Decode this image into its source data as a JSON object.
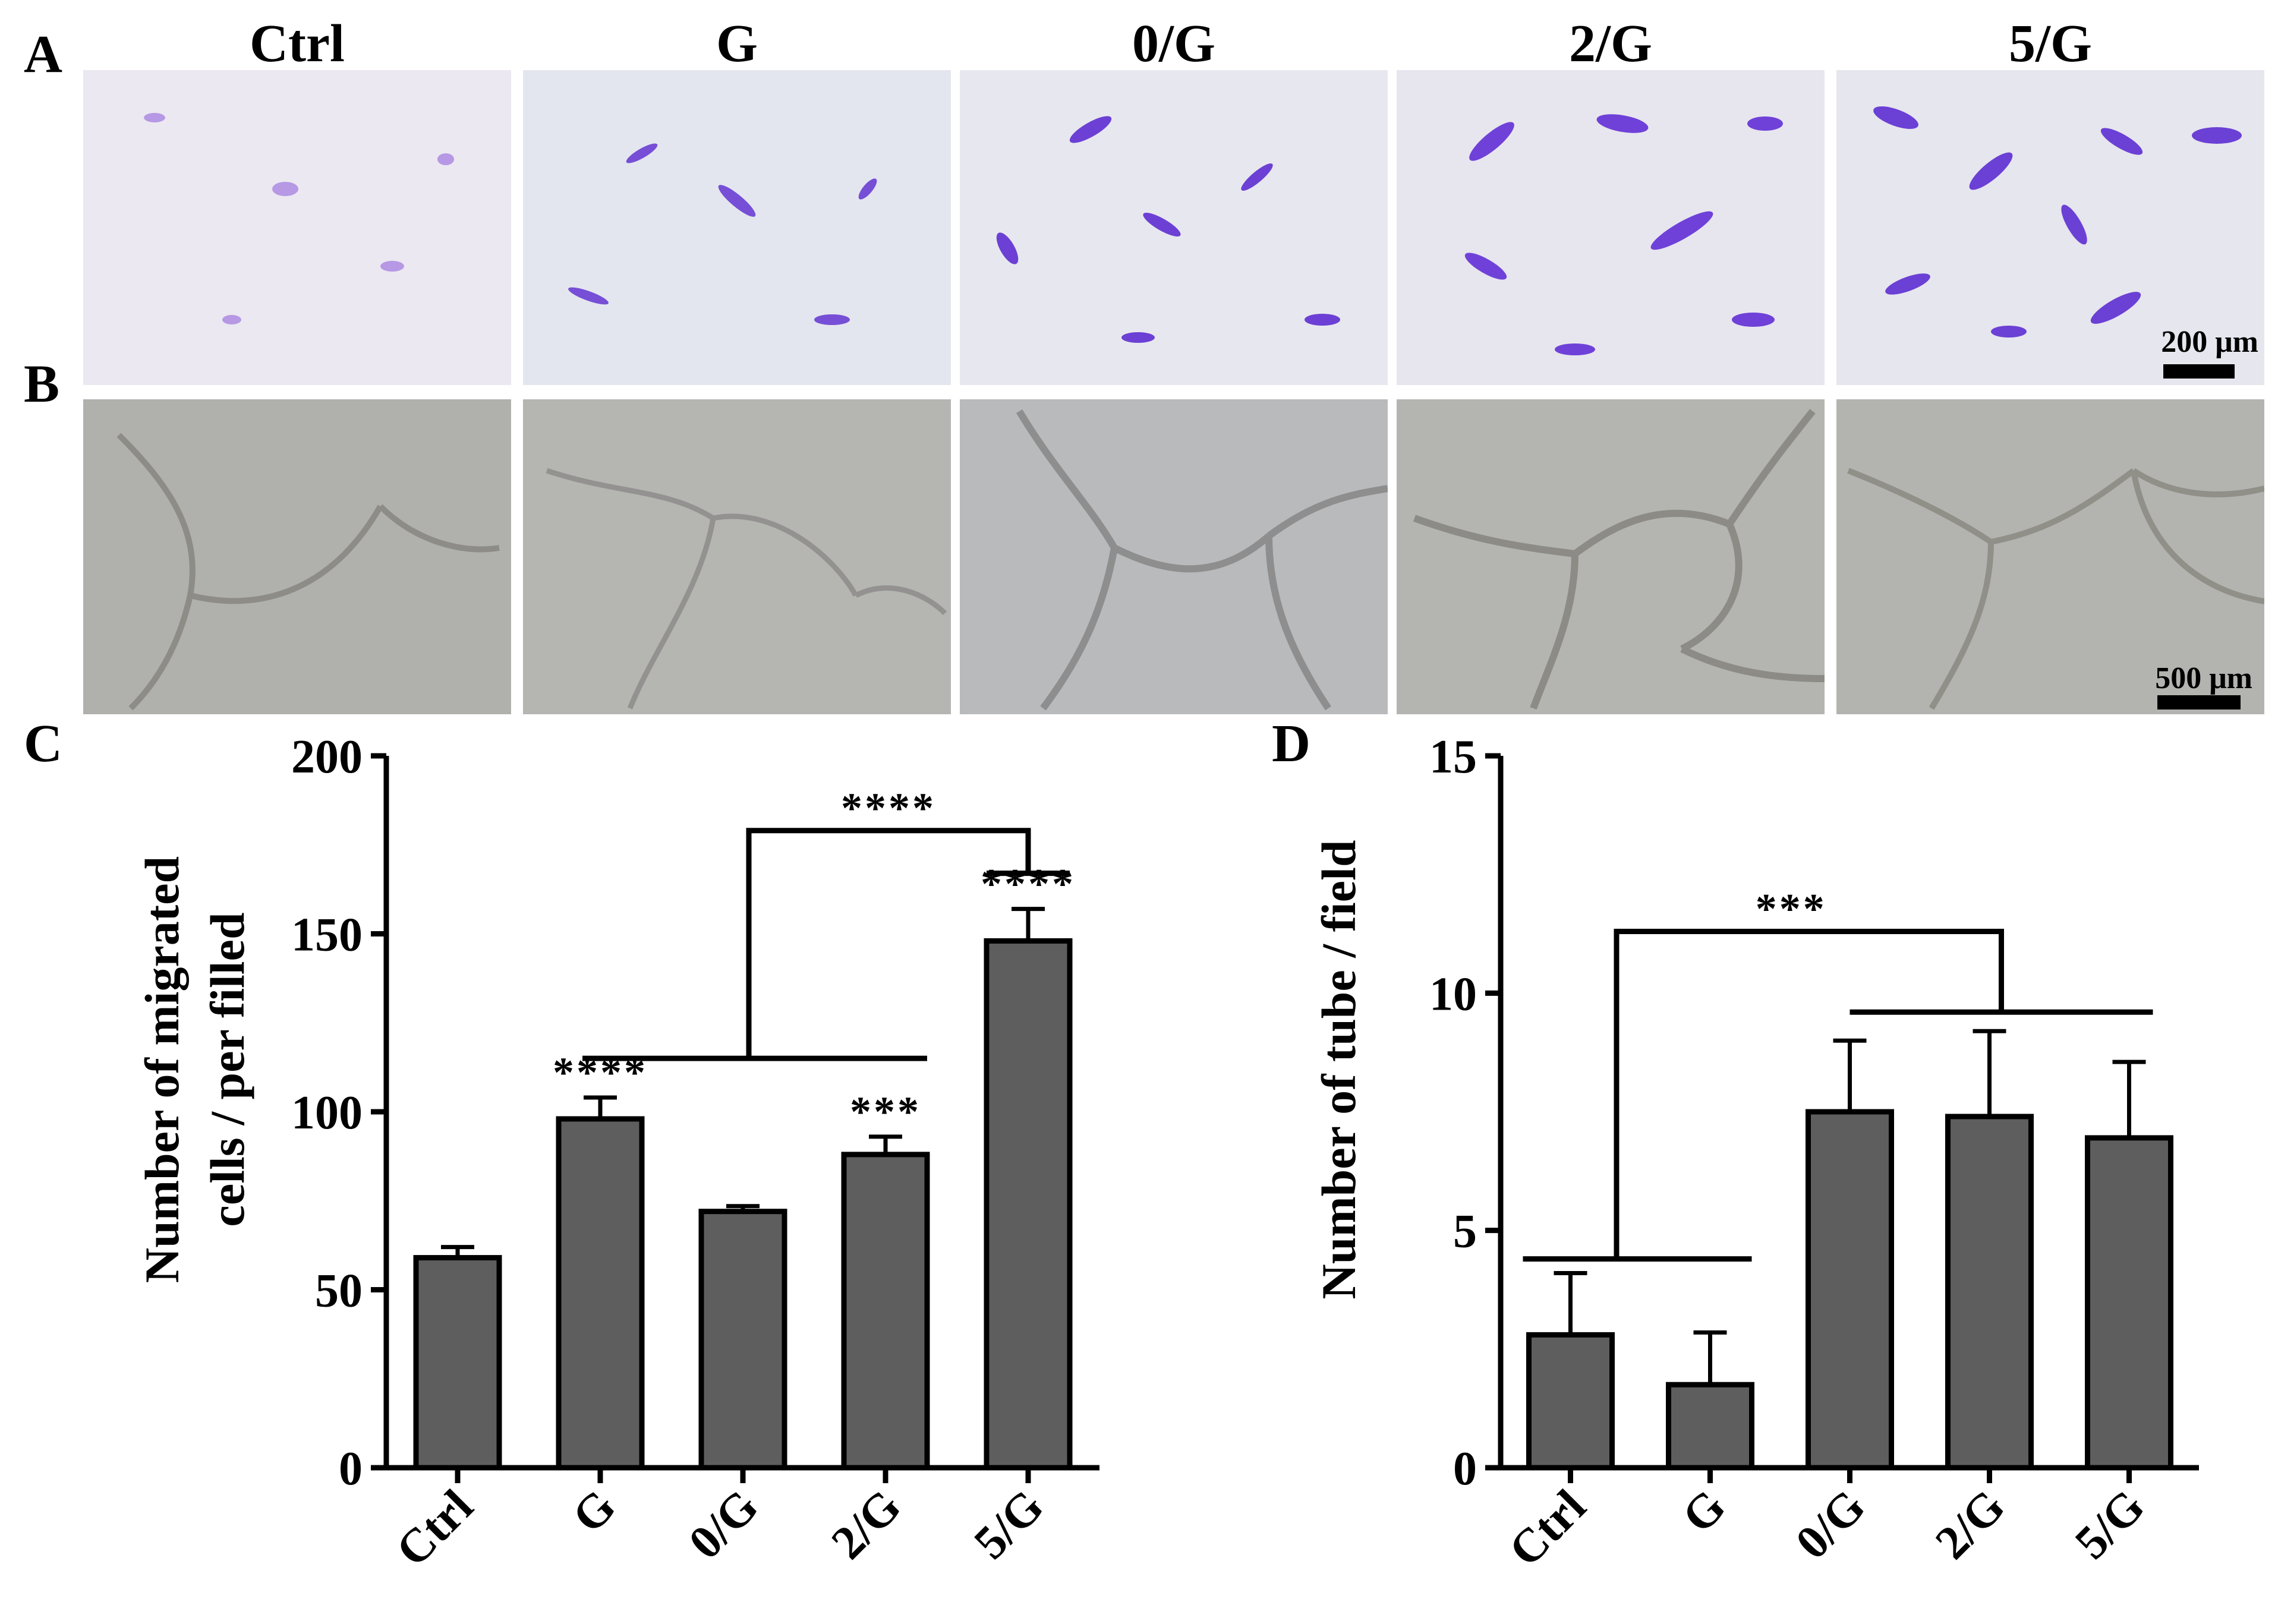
{
  "panels": {
    "a": "A",
    "b": "B",
    "c": "C",
    "d": "D"
  },
  "columns": [
    "Ctrl",
    "G",
    "0/G",
    "2/G",
    "5/G"
  ],
  "scalebars": {
    "a": "200 μm",
    "b": "500 μm"
  },
  "colors": {
    "bar": "#5e5e5e",
    "stain": "#6b2fd1",
    "brightfield": "#b3b4b0"
  },
  "chart_data": [
    {
      "type": "bar",
      "panel": "C",
      "categories": [
        "Ctrl",
        "G",
        "0/G",
        "2/G",
        "5/G"
      ],
      "values": [
        59,
        98,
        72,
        88,
        148
      ],
      "errors": [
        3,
        6,
        1.5,
        5,
        9
      ],
      "ylabel_line1": "Number of migrated",
      "ylabel_line2": "cells / per filled",
      "ylim": [
        0,
        200
      ],
      "yticks": [
        0,
        50,
        100,
        150,
        200
      ],
      "significance": {
        "bar_labels": [
          "",
          "****",
          "",
          "***",
          "****"
        ],
        "bracket_label": "****"
      }
    },
    {
      "type": "bar",
      "panel": "D",
      "categories": [
        "Ctrl",
        "G",
        "0/G",
        "2/G",
        "5/G"
      ],
      "values": [
        2.8,
        1.75,
        7.5,
        7.4,
        6.95
      ],
      "errors": [
        1.3,
        1.1,
        1.5,
        1.8,
        1.6
      ],
      "ylabel": "Number of tube / field",
      "ylim": [
        0,
        15
      ],
      "yticks": [
        0,
        5,
        10,
        15
      ],
      "significance": {
        "bracket_label": "***"
      }
    }
  ]
}
